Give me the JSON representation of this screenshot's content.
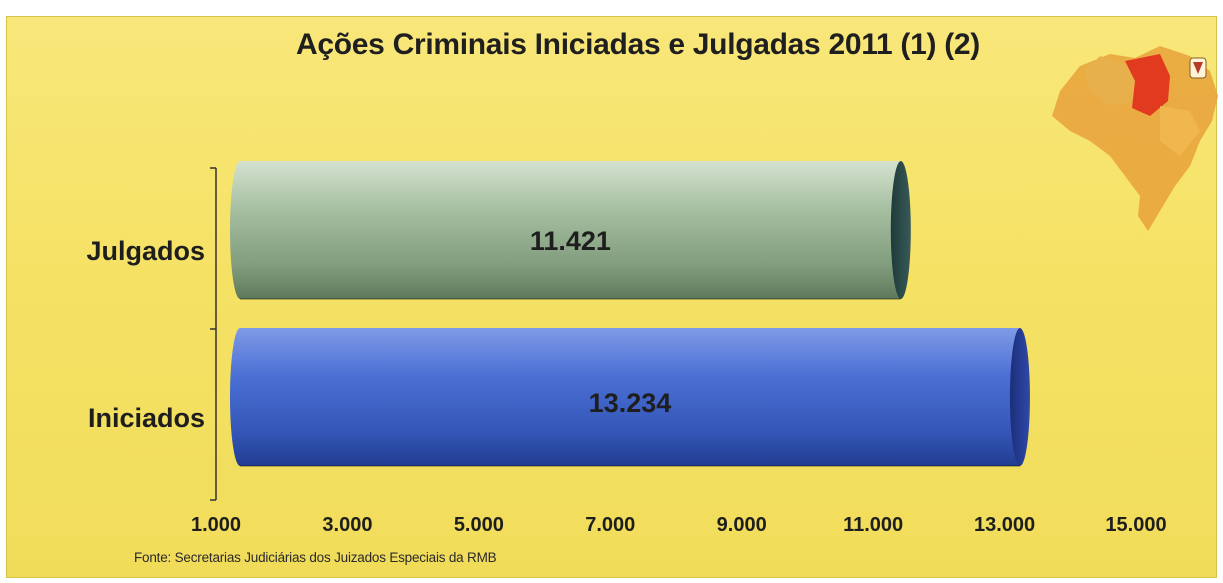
{
  "chart_data": {
    "type": "bar",
    "orientation": "horizontal",
    "title": "Ações Criminais Iniciadas e Julgadas  2011 (1) (2)",
    "categories": [
      "Julgados",
      "Iniciados"
    ],
    "values": [
      11421,
      13234
    ],
    "value_labels": [
      "11.421",
      "13.234"
    ],
    "xlim": [
      1000,
      15000
    ],
    "x_ticks": [
      1000,
      3000,
      5000,
      7000,
      9000,
      11000,
      13000,
      15000
    ],
    "x_tick_labels": [
      "1.000",
      "3.000",
      "5.000",
      "7.000",
      "9.000",
      "11.000",
      "13.000",
      "15.000"
    ],
    "grid": false,
    "legend": "none",
    "colors": {
      "Julgados": "#9fb89a",
      "Iniciados": "#3f64c8",
      "background": "#f4e36a"
    }
  },
  "source": "Fonte: Secretarias Judiciárias dos Juizados Especiais da RMB",
  "decoration": {
    "icon": "brazil-map-icon"
  }
}
